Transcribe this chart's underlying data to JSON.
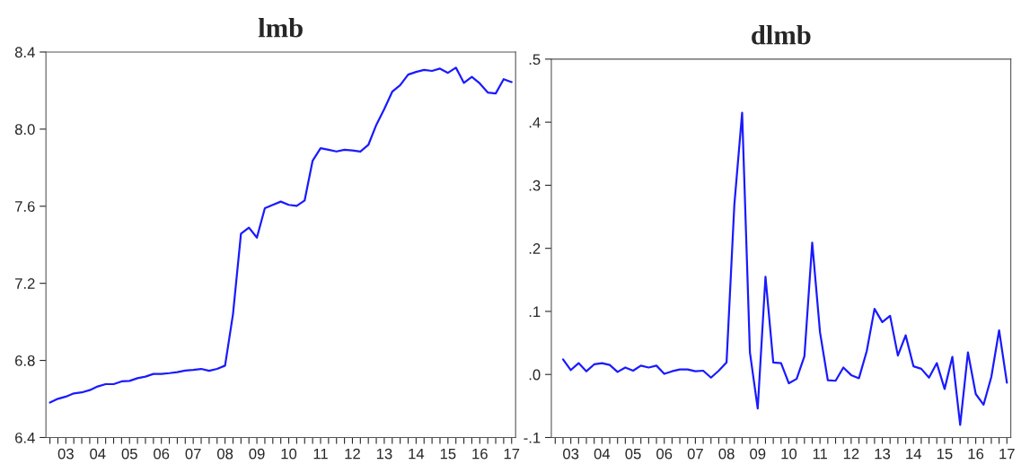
{
  "chart_data": [
    {
      "type": "line",
      "title": "lmb",
      "categories": [
        null,
        null,
        "03",
        null,
        null,
        null,
        "04",
        null,
        null,
        null,
        "05",
        null,
        null,
        null,
        "06",
        null,
        null,
        null,
        "07",
        null,
        null,
        null,
        "08",
        null,
        null,
        null,
        "09",
        null,
        null,
        null,
        "10",
        null,
        null,
        null,
        "11",
        null,
        null,
        null,
        "12",
        null,
        null,
        null,
        "13",
        null,
        null,
        null,
        "14",
        null,
        null,
        null,
        "15",
        null,
        null,
        null,
        "16",
        null,
        null,
        null,
        "17"
      ],
      "series": [
        {
          "color": "#1a1aff",
          "values": [
            6.581,
            6.601,
            6.612,
            6.629,
            6.634,
            6.646,
            6.665,
            6.677,
            6.677,
            6.691,
            6.694,
            6.708,
            6.716,
            6.73,
            6.73,
            6.734,
            6.739,
            6.747,
            6.751,
            6.756,
            6.746,
            6.756,
            6.773,
            7.041,
            7.458,
            7.489,
            7.437,
            7.59,
            7.607,
            7.624,
            7.607,
            7.602,
            7.63,
            7.836,
            7.901,
            7.893,
            7.884,
            7.893,
            7.889,
            7.884,
            7.918,
            8.022,
            8.104,
            8.194,
            8.228,
            8.283,
            8.297,
            8.307,
            8.302,
            8.314,
            8.292,
            8.319,
            8.24,
            8.271,
            8.237,
            8.19,
            8.185,
            8.259,
            8.244
          ]
        }
      ],
      "ylim": [
        6.4,
        8.4
      ],
      "yticks": [
        {
          "value": 6.4,
          "label": "6.4"
        },
        {
          "value": 6.8,
          "label": "6.8"
        },
        {
          "value": 7.2,
          "label": "7.2"
        },
        {
          "value": 7.6,
          "label": "7.6"
        },
        {
          "value": 8.0,
          "label": "8.0"
        },
        {
          "value": 8.4,
          "label": "8.4"
        }
      ]
    },
    {
      "type": "line",
      "title": "dlmb",
      "categories": [
        null,
        null,
        "03",
        null,
        null,
        null,
        "04",
        null,
        null,
        null,
        "05",
        null,
        null,
        null,
        "06",
        null,
        null,
        null,
        "07",
        null,
        null,
        null,
        "08",
        null,
        null,
        null,
        "09",
        null,
        null,
        null,
        "10",
        null,
        null,
        null,
        "11",
        null,
        null,
        null,
        "12",
        null,
        null,
        null,
        "13",
        null,
        null,
        null,
        "14",
        null,
        null,
        null,
        "15",
        null,
        null,
        null,
        "16",
        null,
        null,
        null,
        "17"
      ],
      "series": [
        {
          "color": "#1a1aff",
          "values": [
            null,
            0.024,
            0.007,
            0.018,
            0.005,
            0.016,
            0.018,
            0.015,
            0.004,
            0.011,
            0.006,
            0.014,
            0.011,
            0.014,
            0.001,
            0.005,
            0.008,
            0.008,
            0.005,
            0.006,
            -0.005,
            0.006,
            0.019,
            0.269,
            0.415,
            0.035,
            -0.054,
            0.155,
            0.019,
            0.018,
            -0.014,
            -0.007,
            0.029,
            0.209,
            0.067,
            -0.009,
            -0.01,
            0.011,
            -0.001,
            -0.006,
            0.037,
            0.104,
            0.083,
            0.093,
            0.03,
            0.062,
            0.013,
            0.009,
            -0.005,
            0.018,
            -0.023,
            0.028,
            -0.08,
            0.035,
            -0.031,
            -0.048,
            -0.004,
            0.07,
            -0.013
          ]
        }
      ],
      "ylim": [
        -0.1,
        0.5
      ],
      "yticks": [
        {
          "value": -0.1,
          "label": "-.1"
        },
        {
          "value": 0.0,
          "label": ".0"
        },
        {
          "value": 0.1,
          "label": ".1"
        },
        {
          "value": 0.2,
          "label": ".2"
        },
        {
          "value": 0.3,
          "label": ".3"
        },
        {
          "value": 0.4,
          "label": ".4"
        },
        {
          "value": 0.5,
          "label": ".5"
        }
      ]
    }
  ]
}
